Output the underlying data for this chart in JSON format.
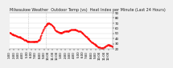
{
  "title": "Milwaukee Weather  Outdoor Temp (vs)  Heat Index per Minute (Last 24 Hours)",
  "background_color": "#f0f0f0",
  "plot_bg_color": "#ffffff",
  "line_color": "#ff0000",
  "line_style": "--",
  "line_width": 0.6,
  "marker": ".",
  "marker_size": 1.0,
  "ylim": [
    20,
    90
  ],
  "yticks": [
    20,
    30,
    40,
    50,
    60,
    70,
    80,
    90
  ],
  "grid_color": "#cccccc",
  "vline_positions": [
    26,
    50
  ],
  "vline_color": "#aaaaaa",
  "vline_style": ":",
  "title_fontsize": 3.5,
  "tick_fontsize": 2.8,
  "x_data": [
    0,
    1,
    2,
    3,
    4,
    5,
    6,
    7,
    8,
    9,
    10,
    11,
    12,
    13,
    14,
    15,
    16,
    17,
    18,
    19,
    20,
    21,
    22,
    23,
    24,
    25,
    26,
    27,
    28,
    29,
    30,
    31,
    32,
    33,
    34,
    35,
    36,
    37,
    38,
    39,
    40,
    41,
    42,
    43,
    44,
    45,
    46,
    47,
    48,
    49,
    50,
    51,
    52,
    53,
    54,
    55,
    56,
    57,
    58,
    59,
    60,
    61,
    62,
    63,
    64,
    65,
    66,
    67,
    68,
    69,
    70,
    71,
    72,
    73,
    74,
    75,
    76,
    77,
    78,
    79,
    80,
    81,
    82,
    83,
    84,
    85,
    86,
    87,
    88,
    89,
    90,
    91,
    92,
    93,
    94,
    95,
    96,
    97,
    98,
    99,
    100,
    101,
    102,
    103,
    104,
    105,
    106,
    107,
    108,
    109,
    110,
    111,
    112,
    113,
    114,
    115,
    116,
    117,
    118,
    119,
    120,
    121,
    122,
    123,
    124,
    125,
    126,
    127,
    128,
    129,
    130,
    131,
    132,
    133,
    134,
    135,
    136,
    137,
    138,
    139,
    140,
    141,
    142,
    143
  ],
  "y_data": [
    52,
    51,
    50,
    49,
    49,
    48,
    47,
    47,
    46,
    45,
    45,
    44,
    44,
    43,
    43,
    42,
    42,
    41,
    40,
    39,
    38,
    37,
    37,
    36,
    36,
    35,
    35,
    35,
    34,
    34,
    34,
    34,
    34,
    34,
    34,
    34,
    35,
    35,
    35,
    36,
    37,
    38,
    40,
    43,
    47,
    51,
    55,
    58,
    61,
    63,
    65,
    67,
    69,
    70,
    70,
    70,
    69,
    68,
    67,
    66,
    64,
    62,
    60,
    58,
    56,
    55,
    54,
    53,
    53,
    52,
    52,
    52,
    52,
    52,
    53,
    53,
    54,
    54,
    54,
    55,
    55,
    55,
    55,
    56,
    56,
    57,
    57,
    57,
    57,
    57,
    57,
    57,
    57,
    56,
    56,
    55,
    55,
    54,
    54,
    53,
    52,
    51,
    50,
    48,
    47,
    45,
    44,
    43,
    41,
    40,
    39,
    37,
    36,
    34,
    33,
    32,
    31,
    30,
    29,
    28,
    27,
    26,
    25,
    24,
    23,
    23,
    22,
    22,
    22,
    22,
    22,
    23,
    24,
    25,
    26,
    27,
    28,
    28,
    28,
    27,
    27,
    26,
    25,
    25
  ],
  "xtick_labels": [
    "1:00",
    "2:00",
    "3:00",
    "4:00",
    "5:00",
    "6:00",
    "7:00",
    "8:00",
    "9:00",
    "10:00",
    "11:00",
    "12:00",
    "1:00",
    "2:00",
    "3:00",
    "4:00",
    "5:00",
    "6:00",
    "7:00",
    "8:00",
    "9:00",
    "10:00",
    "11:00",
    "12:00"
  ]
}
